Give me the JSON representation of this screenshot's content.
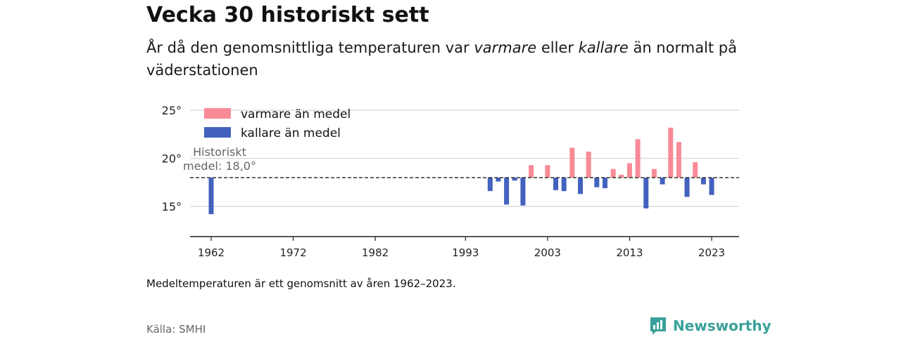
{
  "header": {
    "title": "Vecka 30 historiskt sett",
    "subtitle_pre": "År då den genomsnittliga temperaturen var ",
    "subtitle_warm": "varmare",
    "subtitle_mid": " eller ",
    "subtitle_cold": "kallare",
    "subtitle_post": " än normalt på väderstationen"
  },
  "chart_data": {
    "type": "bar",
    "baseline": 18.0,
    "baseline_label": [
      "Historiskt",
      "medel: 18,0°"
    ],
    "ylim": [
      12,
      25.5
    ],
    "yticks": [
      15,
      20,
      25
    ],
    "ytick_labels": [
      "15°",
      "20°",
      "25°"
    ],
    "xlim": [
      1961,
      2026
    ],
    "xticks": [
      1962,
      1972,
      1982,
      1993,
      2003,
      2013,
      2023
    ],
    "xtick_labels": [
      "1962",
      "1972",
      "1982",
      "1993",
      "2003",
      "2013",
      "2023"
    ],
    "legend": {
      "position": "top-left",
      "entries": [
        {
          "label": "varmare än medel",
          "color": "#f98b96"
        },
        {
          "label": "kallare än medel",
          "color": "#4361be"
        }
      ]
    },
    "colors": {
      "warm": "#f98b96",
      "cold": "#4361be"
    },
    "x": [
      1962,
      1996,
      1997,
      1998,
      1999,
      2000,
      2001,
      2003,
      2004,
      2005,
      2006,
      2007,
      2008,
      2009,
      2010,
      2011,
      2012,
      2013,
      2014,
      2015,
      2016,
      2017,
      2018,
      2019,
      2020,
      2021,
      2022,
      2023
    ],
    "values": [
      14.2,
      16.6,
      17.6,
      15.2,
      17.7,
      15.1,
      19.3,
      19.3,
      16.7,
      16.6,
      21.1,
      16.3,
      20.7,
      17.0,
      16.9,
      18.9,
      18.3,
      19.5,
      22.0,
      14.8,
      18.9,
      17.3,
      23.2,
      21.7,
      16.0,
      19.6,
      17.3,
      16.2
    ]
  },
  "footer": {
    "note": "Medeltemperaturen är ett genomsnitt av åren 1962–2023.",
    "source": "Källa: SMHI",
    "brand": "Newsworthy",
    "brand_icon": "newsworthy-logo-icon",
    "brand_color": "#3aa19a"
  }
}
